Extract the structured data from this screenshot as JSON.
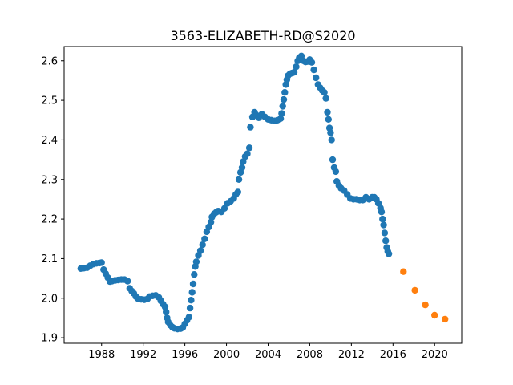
{
  "chart_data": {
    "type": "scatter",
    "title": "3563-ELIZABETH-RD@S2020",
    "xlabel": "",
    "ylabel": "",
    "xlim": [
      1984.4,
      2022.6
    ],
    "ylim": [
      1.886,
      2.636
    ],
    "x_ticks": [
      "1988",
      "1992",
      "1996",
      "2000",
      "2004",
      "2008",
      "2012",
      "2016",
      "2020"
    ],
    "y_ticks": [
      "1.9",
      "2.0",
      "2.1",
      "2.2",
      "2.3",
      "2.4",
      "2.5",
      "2.6"
    ],
    "grid": false,
    "legend": "none",
    "series": [
      {
        "color": "#1f77b4",
        "points": [
          [
            1986.0,
            2.075
          ],
          [
            1986.3,
            2.076
          ],
          [
            1986.6,
            2.077
          ],
          [
            1986.9,
            2.082
          ],
          [
            1987.2,
            2.086
          ],
          [
            1987.5,
            2.088
          ],
          [
            1987.8,
            2.089
          ],
          [
            1988.0,
            2.09
          ],
          [
            1988.2,
            2.072
          ],
          [
            1988.4,
            2.062
          ],
          [
            1988.6,
            2.052
          ],
          [
            1988.8,
            2.042
          ],
          [
            1989.0,
            2.043
          ],
          [
            1989.3,
            2.045
          ],
          [
            1989.6,
            2.046
          ],
          [
            1989.9,
            2.047
          ],
          [
            1990.2,
            2.047
          ],
          [
            1990.5,
            2.043
          ],
          [
            1990.7,
            2.025
          ],
          [
            1990.9,
            2.018
          ],
          [
            1991.1,
            2.012
          ],
          [
            1991.3,
            2.004
          ],
          [
            1991.5,
            1.999
          ],
          [
            1991.8,
            1.997
          ],
          [
            1992.1,
            1.996
          ],
          [
            1992.4,
            1.998
          ],
          [
            1992.6,
            2.004
          ],
          [
            1992.9,
            2.006
          ],
          [
            1993.2,
            2.007
          ],
          [
            1993.5,
            2.002
          ],
          [
            1993.7,
            1.993
          ],
          [
            1993.9,
            1.985
          ],
          [
            1994.1,
            1.978
          ],
          [
            1994.2,
            1.965
          ],
          [
            1994.3,
            1.95
          ],
          [
            1994.4,
            1.94
          ],
          [
            1994.6,
            1.932
          ],
          [
            1994.8,
            1.927
          ],
          [
            1995.0,
            1.924
          ],
          [
            1995.3,
            1.922
          ],
          [
            1995.6,
            1.923
          ],
          [
            1995.8,
            1.926
          ],
          [
            1996.0,
            1.935
          ],
          [
            1996.2,
            1.944
          ],
          [
            1996.4,
            1.952
          ],
          [
            1996.5,
            1.975
          ],
          [
            1996.6,
            1.995
          ],
          [
            1996.7,
            2.015
          ],
          [
            1996.8,
            2.036
          ],
          [
            1996.9,
            2.06
          ],
          [
            1997.0,
            2.08
          ],
          [
            1997.1,
            2.092
          ],
          [
            1997.3,
            2.108
          ],
          [
            1997.5,
            2.12
          ],
          [
            1997.7,
            2.135
          ],
          [
            1997.9,
            2.15
          ],
          [
            1998.1,
            2.168
          ],
          [
            1998.3,
            2.18
          ],
          [
            1998.5,
            2.192
          ],
          [
            1998.6,
            2.205
          ],
          [
            1998.8,
            2.213
          ],
          [
            1999.0,
            2.217
          ],
          [
            1999.2,
            2.22
          ],
          [
            1999.5,
            2.218
          ],
          [
            1999.8,
            2.227
          ],
          [
            2000.1,
            2.24
          ],
          [
            2000.4,
            2.245
          ],
          [
            2000.7,
            2.252
          ],
          [
            2000.9,
            2.262
          ],
          [
            2001.1,
            2.268
          ],
          [
            2001.2,
            2.3
          ],
          [
            2001.35,
            2.318
          ],
          [
            2001.5,
            2.33
          ],
          [
            2001.6,
            2.345
          ],
          [
            2001.8,
            2.358
          ],
          [
            2002.0,
            2.365
          ],
          [
            2002.2,
            2.38
          ],
          [
            2002.3,
            2.432
          ],
          [
            2002.5,
            2.458
          ],
          [
            2002.7,
            2.47
          ],
          [
            2002.9,
            2.462
          ],
          [
            2003.1,
            2.456
          ],
          [
            2003.4,
            2.465
          ],
          [
            2003.7,
            2.458
          ],
          [
            2004.0,
            2.452
          ],
          [
            2004.3,
            2.45
          ],
          [
            2004.6,
            2.448
          ],
          [
            2004.9,
            2.45
          ],
          [
            2005.2,
            2.454
          ],
          [
            2005.3,
            2.467
          ],
          [
            2005.4,
            2.485
          ],
          [
            2005.5,
            2.502
          ],
          [
            2005.6,
            2.52
          ],
          [
            2005.7,
            2.54
          ],
          [
            2005.8,
            2.552
          ],
          [
            2005.9,
            2.562
          ],
          [
            2006.1,
            2.567
          ],
          [
            2006.3,
            2.569
          ],
          [
            2006.5,
            2.571
          ],
          [
            2006.7,
            2.585
          ],
          [
            2006.85,
            2.6
          ],
          [
            2007.0,
            2.608
          ],
          [
            2007.2,
            2.612
          ],
          [
            2007.4,
            2.6
          ],
          [
            2007.6,
            2.597
          ],
          [
            2007.8,
            2.598
          ],
          [
            2008.0,
            2.603
          ],
          [
            2008.2,
            2.596
          ],
          [
            2008.4,
            2.577
          ],
          [
            2008.6,
            2.557
          ],
          [
            2008.8,
            2.54
          ],
          [
            2009.0,
            2.532
          ],
          [
            2009.2,
            2.525
          ],
          [
            2009.4,
            2.52
          ],
          [
            2009.55,
            2.505
          ],
          [
            2009.7,
            2.47
          ],
          [
            2009.8,
            2.452
          ],
          [
            2009.9,
            2.43
          ],
          [
            2010.0,
            2.418
          ],
          [
            2010.1,
            2.4
          ],
          [
            2010.2,
            2.35
          ],
          [
            2010.35,
            2.33
          ],
          [
            2010.5,
            2.32
          ],
          [
            2010.6,
            2.295
          ],
          [
            2010.8,
            2.285
          ],
          [
            2011.0,
            2.278
          ],
          [
            2011.3,
            2.272
          ],
          [
            2011.6,
            2.262
          ],
          [
            2011.9,
            2.252
          ],
          [
            2012.2,
            2.25
          ],
          [
            2012.5,
            2.25
          ],
          [
            2012.8,
            2.248
          ],
          [
            2013.1,
            2.248
          ],
          [
            2013.4,
            2.255
          ],
          [
            2013.7,
            2.25
          ],
          [
            2014.0,
            2.255
          ],
          [
            2014.2,
            2.255
          ],
          [
            2014.4,
            2.25
          ],
          [
            2014.6,
            2.24
          ],
          [
            2014.8,
            2.228
          ],
          [
            2014.9,
            2.218
          ],
          [
            2015.0,
            2.2
          ],
          [
            2015.1,
            2.185
          ],
          [
            2015.2,
            2.165
          ],
          [
            2015.3,
            2.145
          ],
          [
            2015.4,
            2.128
          ],
          [
            2015.5,
            2.118
          ],
          [
            2015.6,
            2.112
          ]
        ]
      },
      {
        "color": "#ff7f0e",
        "points": [
          [
            2017.0,
            2.067
          ],
          [
            2018.1,
            2.02
          ],
          [
            2019.1,
            1.983
          ],
          [
            2020.0,
            1.957
          ],
          [
            2021.0,
            1.947
          ]
        ]
      }
    ]
  }
}
